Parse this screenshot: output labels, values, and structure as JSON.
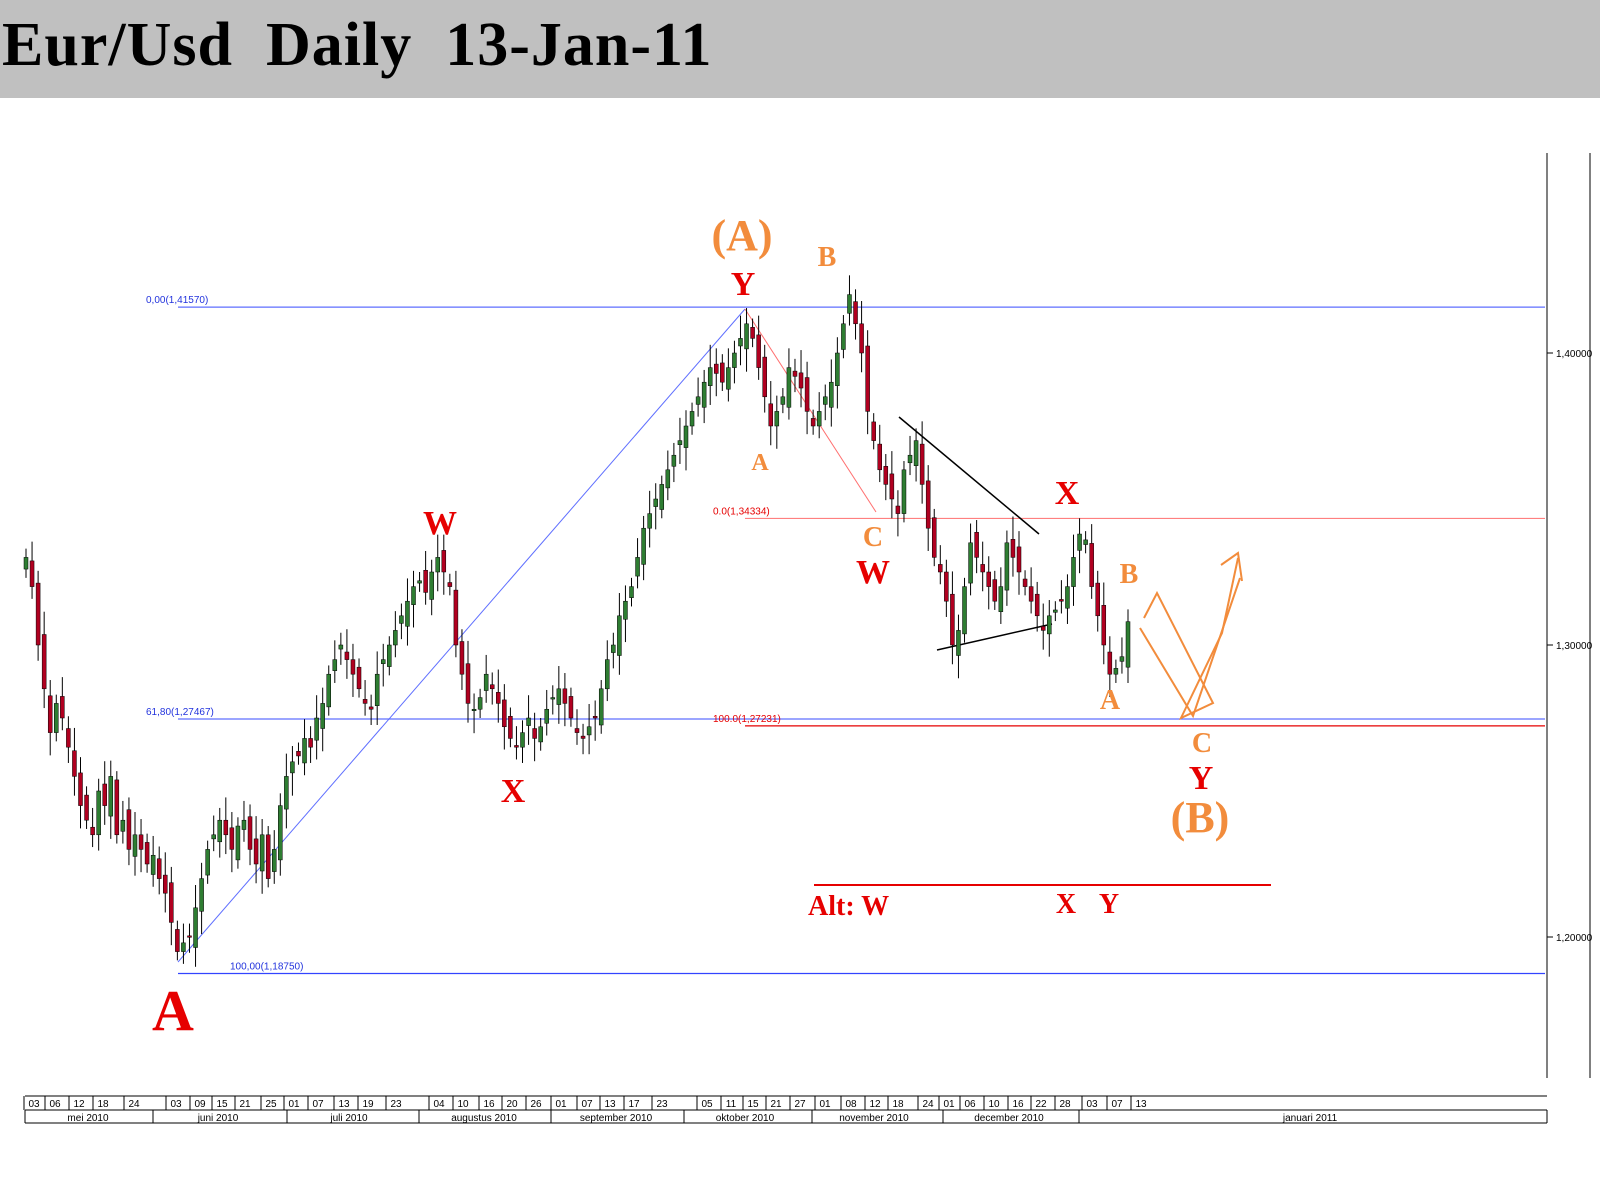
{
  "title": "Eur/Usd  Daily  13-Jan-11",
  "chart_data": {
    "type": "candlestick",
    "instrument": "Eur/Usd",
    "timeframe": "Daily",
    "ylim": [
      1.16,
      1.45
    ],
    "y_ticks": [
      "1,40000",
      "1,30000",
      "1,20000"
    ],
    "y_tick_values": [
      1.4,
      1.3,
      1.2
    ],
    "x_day_ticks": [
      "03",
      "06",
      "12",
      "18",
      "24",
      "03",
      "09",
      "15",
      "21",
      "25",
      "01",
      "07",
      "13",
      "19",
      "23",
      "04",
      "10",
      "16",
      "20",
      "26",
      "01",
      "07",
      "13",
      "17",
      "23",
      "05",
      "11",
      "15",
      "21",
      "27",
      "01",
      "08",
      "12",
      "18",
      "24",
      "01",
      "06",
      "10",
      "16",
      "22",
      "28",
      "03",
      "07",
      "13"
    ],
    "x_month_labels": [
      "mei 2010",
      "juni 2010",
      "juli 2010",
      "augustus 2010",
      "september 2010",
      "oktober 2010",
      "november 2010",
      "december 2010",
      "januari 2011"
    ],
    "candles_close": [
      1.33,
      1.32,
      1.3,
      1.285,
      1.27,
      1.28,
      1.275,
      1.265,
      1.255,
      1.245,
      1.24,
      1.235,
      1.25,
      1.245,
      1.255,
      1.235,
      1.24,
      1.23,
      1.235,
      1.23,
      1.225,
      1.228,
      1.22,
      1.215,
      1.205,
      1.195,
      1.198,
      1.2,
      1.21,
      1.22,
      1.23,
      1.235,
      1.24,
      1.235,
      1.23,
      1.238,
      1.24,
      1.23,
      1.225,
      1.235,
      1.22,
      1.23,
      1.245,
      1.255,
      1.26,
      1.262,
      1.268,
      1.265,
      1.275,
      1.28,
      1.29,
      1.295,
      1.3,
      1.295,
      1.29,
      1.285,
      1.28,
      1.278,
      1.29,
      1.295,
      1.3,
      1.305,
      1.31,
      1.315,
      1.32,
      1.322,
      1.318,
      1.325,
      1.33,
      1.325,
      1.32,
      1.3,
      1.29,
      1.28,
      1.278,
      1.282,
      1.29,
      1.285,
      1.28,
      1.272,
      1.268,
      1.265,
      1.27,
      1.275,
      1.268,
      1.272,
      1.278,
      1.282,
      1.285,
      1.28,
      1.275,
      1.27,
      1.268,
      1.272,
      1.275,
      1.285,
      1.295,
      1.3,
      1.31,
      1.315,
      1.32,
      1.33,
      1.34,
      1.345,
      1.35,
      1.355,
      1.36,
      1.365,
      1.37,
      1.375,
      1.38,
      1.385,
      1.39,
      1.395,
      1.393,
      1.39,
      1.395,
      1.4,
      1.405,
      1.41,
      1.405,
      1.395,
      1.385,
      1.375,
      1.38,
      1.385,
      1.395,
      1.392,
      1.388,
      1.38,
      1.375,
      1.38,
      1.385,
      1.39,
      1.4,
      1.41,
      1.42,
      1.41,
      1.4,
      1.38,
      1.37,
      1.36,
      1.355,
      1.35,
      1.345,
      1.36,
      1.365,
      1.37,
      1.355,
      1.34,
      1.33,
      1.325,
      1.315,
      1.3,
      1.305,
      1.32,
      1.335,
      1.33,
      1.325,
      1.32,
      1.315,
      1.32,
      1.335,
      1.33,
      1.325,
      1.32,
      1.315,
      1.31,
      1.305,
      1.31,
      1.312,
      1.315,
      1.32,
      1.33,
      1.338,
      1.336,
      1.32,
      1.31,
      1.3,
      1.29,
      1.292,
      1.296,
      1.308
    ]
  },
  "fib_levels": {
    "blue_0": "0,00(1,41570)",
    "blue_618": "61,80(1,27467)",
    "blue_100": "100,00(1,18750)",
    "red_0": "0.0(1,34334)",
    "red_100": "100.0(1,27231)",
    "values": {
      "b0": 1.4157,
      "b618": 1.27467,
      "b100": 1.1875,
      "r0": 1.34334,
      "r100": 1.27231
    }
  },
  "labels": {
    "A_bottom": "A",
    "A_paren": "(A)",
    "Y_top": "Y",
    "B_top": "B",
    "A_small": "A",
    "W_jul": "W",
    "X_aug": "X",
    "C_nov": "C",
    "W_nov": "W",
    "X_dec": "X",
    "B_jan": "B",
    "A_jan": "A",
    "C_proj": "C",
    "Y_proj": "Y",
    "B_paren": "(B)",
    "alt_w": "Alt: W",
    "alt_x": "X",
    "alt_y": "Y"
  },
  "colors": {
    "bull": "#2e7d32",
    "bear": "#b00020",
    "orange": "#f28c3c",
    "red": "#e60000",
    "blue": "#3344ff",
    "fib_red": "#ff8080"
  }
}
